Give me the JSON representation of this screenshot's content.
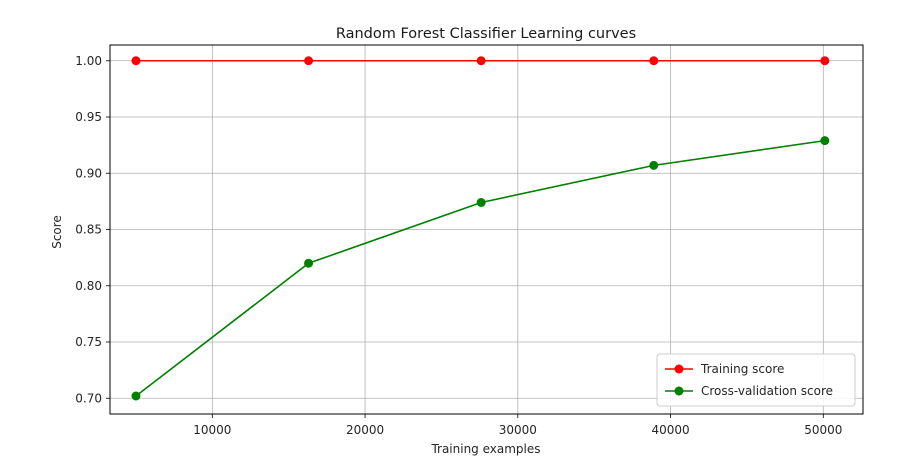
{
  "chart_data": {
    "type": "line",
    "title": "Random Forest Classifier Learning curves",
    "xlabel": "Training examples",
    "ylabel": "Score",
    "xlim": [
      3300,
      52600
    ],
    "ylim": [
      0.686,
      1.014
    ],
    "xticks": [
      10000,
      20000,
      30000,
      40000,
      50000
    ],
    "xtick_labels": [
      "10000",
      "20000",
      "30000",
      "40000",
      "50000"
    ],
    "yticks": [
      0.7,
      0.75,
      0.8,
      0.85,
      0.9,
      0.95,
      1.0
    ],
    "ytick_labels": [
      "0.70",
      "0.75",
      "0.80",
      "0.85",
      "0.90",
      "0.95",
      "1.00"
    ],
    "grid": true,
    "legend_position": "lower-right",
    "x": [
      5000,
      16300,
      27600,
      38900,
      50100
    ],
    "series": [
      {
        "name": "Training score",
        "color": "#ff0000",
        "values": [
          1.0,
          1.0,
          1.0,
          1.0,
          1.0
        ]
      },
      {
        "name": "Cross-validation score",
        "color": "#008000",
        "values": [
          0.702,
          0.82,
          0.874,
          0.907,
          0.929
        ]
      }
    ]
  }
}
